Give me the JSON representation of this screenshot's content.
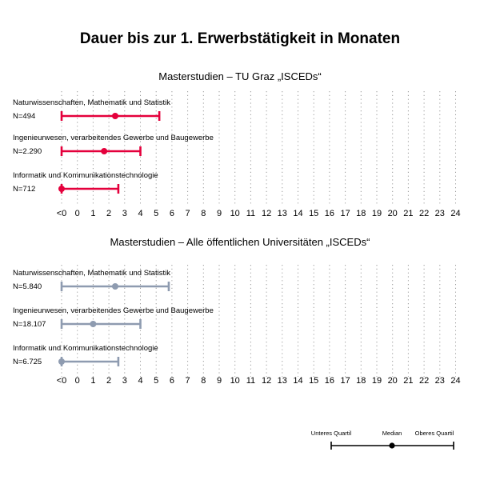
{
  "title": "Dauer bis zur 1. Erwerbstätigkeit in Monaten",
  "colors": {
    "tu_graz": "#e4003c",
    "all_unis": "#8e9bb0",
    "grid": "#9a9a9a",
    "legend": "#000000"
  },
  "chart_data": [
    {
      "type": "range",
      "title": "Masterstudien – TU Graz „ISCEDs“",
      "color": "#e4003c",
      "x_tick_labels": [
        "<0",
        "0",
        "1",
        "2",
        "3",
        "4",
        "5",
        "6",
        "7",
        "8",
        "9",
        "10",
        "11",
        "12",
        "13",
        "14",
        "15",
        "16",
        "17",
        "18",
        "19",
        "20",
        "21",
        "22",
        "23",
        "24"
      ],
      "xlim": [
        -1,
        24
      ],
      "grid": true,
      "rows": [
        {
          "label": "Naturwissenschaften, Mathematik und Statistik",
          "n": "N=494",
          "lower_quartile": -1,
          "median": 2.4,
          "upper_quartile": 5.2
        },
        {
          "label": "Ingenieurwesen, verarbeitendes Gewerbe und Baugewerbe",
          "n": "N=2.290",
          "lower_quartile": -1,
          "median": 1.7,
          "upper_quartile": 4.0
        },
        {
          "label": "Informatik und Kommunikationstechnologie",
          "n": "N=712",
          "lower_quartile": -1,
          "median": -1,
          "upper_quartile": 2.6
        }
      ]
    },
    {
      "type": "range",
      "title": "Masterstudien – Alle öffentlichen Universitäten „ISCEDs“",
      "color": "#8e9bb0",
      "x_tick_labels": [
        "<0",
        "0",
        "1",
        "2",
        "3",
        "4",
        "5",
        "6",
        "7",
        "8",
        "9",
        "10",
        "11",
        "12",
        "13",
        "14",
        "15",
        "16",
        "17",
        "18",
        "19",
        "20",
        "21",
        "22",
        "23",
        "24"
      ],
      "xlim": [
        -1,
        24
      ],
      "grid": true,
      "rows": [
        {
          "label": "Naturwissenschaften, Mathematik und Statistik",
          "n": "N=5.840",
          "lower_quartile": -1,
          "median": 2.4,
          "upper_quartile": 5.8
        },
        {
          "label": "Ingenieurwesen, verarbeitendes Gewerbe und Baugewerbe",
          "n": "N=18.107",
          "lower_quartile": -1,
          "median": 1.0,
          "upper_quartile": 4.0
        },
        {
          "label": "Informatik und Kommunikationstechnologie",
          "n": "N=6.725",
          "lower_quartile": -1,
          "median": -1,
          "upper_quartile": 2.6
        }
      ]
    }
  ],
  "legend": {
    "lower": "Unteres Quartil",
    "median": "Median",
    "upper": "Oberes Quartil",
    "position": "bottom-right"
  }
}
